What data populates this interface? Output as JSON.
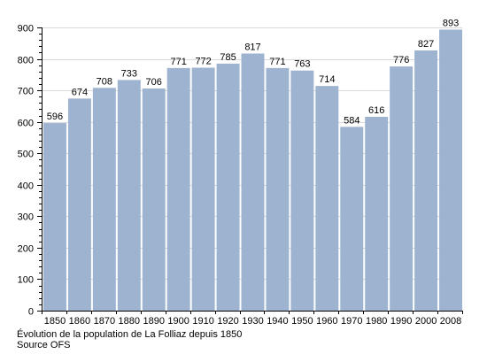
{
  "chart_data": {
    "type": "bar",
    "categories": [
      "1850",
      "1860",
      "1870",
      "1880",
      "1890",
      "1900",
      "1910",
      "1920",
      "1930",
      "1940",
      "1950",
      "1960",
      "1970",
      "1980",
      "1990",
      "2000",
      "2008"
    ],
    "values": [
      596,
      674,
      708,
      733,
      706,
      771,
      772,
      785,
      817,
      771,
      763,
      714,
      584,
      616,
      776,
      827,
      893
    ],
    "y_ticks": [
      0,
      100,
      200,
      300,
      400,
      500,
      600,
      700,
      800,
      900
    ],
    "ylim": [
      0,
      900
    ],
    "grid": true,
    "title": "",
    "xlabel": "",
    "ylabel": "",
    "bar_color": "#9db3cf",
    "grid_color": "#d9d9d9"
  },
  "caption": {
    "line1": "Évolution de la population de La Folliaz depuis 1850",
    "line2": "Source OFS"
  }
}
